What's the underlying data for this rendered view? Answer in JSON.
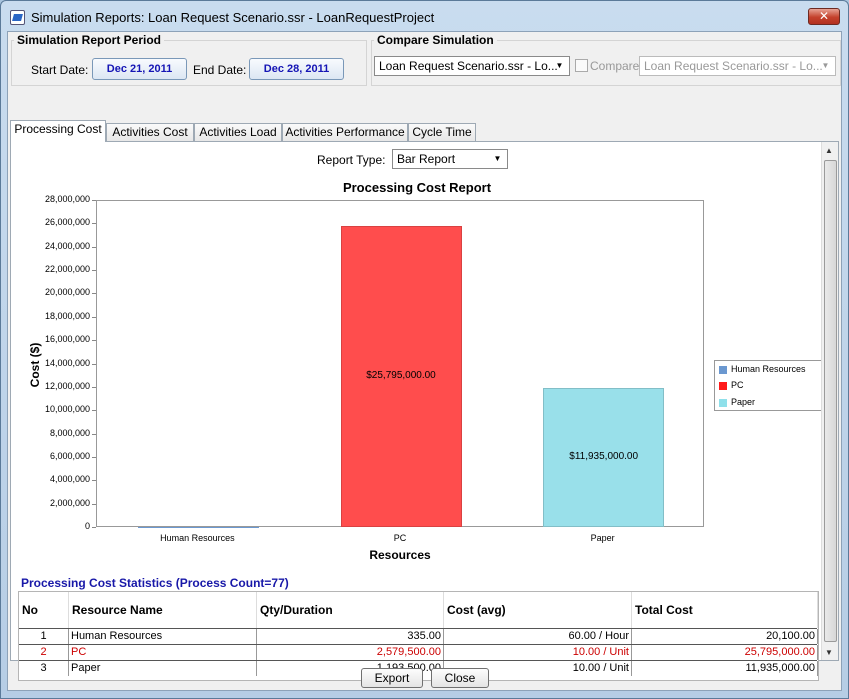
{
  "window": {
    "title": "Simulation Reports: Loan Request Scenario.ssr - LoanRequestProject",
    "close_glyph": "✕"
  },
  "period": {
    "title": "Simulation Report Period",
    "start_label": "Start Date:",
    "start_date": "Dec 21, 2011",
    "end_label": "End Date:",
    "end_date": "Dec 28, 2011"
  },
  "compare": {
    "title": "Compare Simulation",
    "scenario": "Loan Request Scenario.ssr - Lo...",
    "checkbox_label": "Compare",
    "compare_scenario": "Loan Request Scenario.ssr - Lo..."
  },
  "tabs": [
    "Processing Cost",
    "Activities Cost",
    "Activities Load",
    "Activities Performance",
    "Cycle Time"
  ],
  "report": {
    "type_label": "Report Type:",
    "type_value": "Bar Report"
  },
  "chart_data": {
    "type": "bar",
    "title": "Processing Cost Report",
    "xlabel": "Resources",
    "ylabel": "Cost ($)",
    "categories": [
      "Human Resources",
      "PC",
      "Paper"
    ],
    "values": [
      20100,
      25795000,
      11935000
    ],
    "data_labels": [
      "",
      "$25,795,000.00",
      "$11,935,000.00"
    ],
    "colors": [
      "#6b98d0",
      "#ff4d4d",
      "#99e0ea"
    ],
    "ylim": [
      0,
      28000000
    ],
    "yticks": [
      "0",
      "2,000,000",
      "4,000,000",
      "6,000,000",
      "8,000,000",
      "10,000,000",
      "12,000,000",
      "14,000,000",
      "16,000,000",
      "18,000,000",
      "20,000,000",
      "22,000,000",
      "24,000,000",
      "26,000,000",
      "28,000,000"
    ],
    "legend": [
      {
        "name": "Human Resources",
        "color": "#6b98d0"
      },
      {
        "name": "PC",
        "color": "#ff1a1a"
      },
      {
        "name": "Paper",
        "color": "#8fe0ea"
      }
    ],
    "legend_position": "right",
    "grid": false
  },
  "stats": {
    "title": "Processing Cost Statistics (Process Count=77)",
    "headers": [
      "No",
      "Resource Name",
      "Qty/Duration",
      "Cost (avg)",
      "Total Cost"
    ],
    "rows": [
      [
        "1",
        "Human Resources",
        "335.00",
        "60.00 / Hour",
        "20,100.00"
      ],
      [
        "2",
        "PC",
        "2,579,500.00",
        "10.00 / Unit",
        "25,795,000.00"
      ],
      [
        "3",
        "Paper",
        "1,193,500.00",
        "10.00 / Unit",
        "11,935,000.00"
      ]
    ],
    "highlight_row": 1
  },
  "buttons": {
    "export": "Export",
    "close": "Close"
  }
}
